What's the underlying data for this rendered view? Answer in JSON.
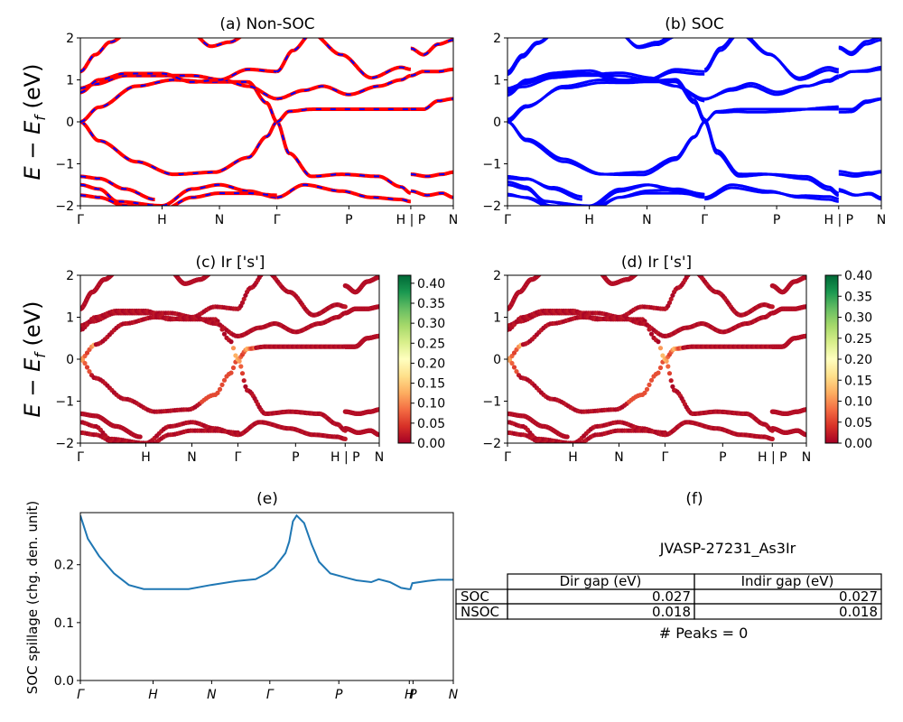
{
  "figure": {
    "ylabel_band": "E − E",
    "ylabel_sub": "f",
    "ylabel_unit": " (eV)"
  },
  "kpath": [
    "Γ",
    "H",
    "N",
    "Γ",
    "P",
    "H | P",
    "N"
  ],
  "panel_a": {
    "title": "(a) Non-SOC"
  },
  "panel_b": {
    "title": "(b) SOC"
  },
  "panel_c": {
    "title": "(c)  Ir ['s']"
  },
  "panel_d": {
    "title": "(d) Ir ['s']"
  },
  "panel_e": {
    "title": "(e)",
    "ylabel": "SOC spillage (chg. den. unit)",
    "kpath_italic": [
      "Γ",
      "H",
      "N",
      "Γ",
      "P",
      "H",
      "P",
      "N"
    ]
  },
  "panel_f": {
    "title": "(f)",
    "jid": "JVASP-27231_As3Ir",
    "table": {
      "columns": [
        "Dir gap (eV)",
        "Indir gap (eV)"
      ],
      "rows": [
        {
          "label": "SOC",
          "dir": "0.027",
          "indir": "0.027"
        },
        {
          "label": "NSOC",
          "dir": "0.018",
          "indir": "0.018"
        }
      ]
    },
    "peaks": "# Peaks = 0"
  },
  "colors": {
    "nonsoc_line": "#ff0000",
    "nonsoc_dash": "#0000ff",
    "soc_line": "#0000ff",
    "spillage_line": "#1f77b4",
    "colormap": "RdYlGn"
  },
  "chart_data": [
    {
      "type": "line",
      "title": "(a) Non-SOC",
      "ylabel": "E − E_f (eV)",
      "ylim": [
        -2,
        2
      ],
      "yticks": [
        "2",
        "1",
        "0",
        "−1",
        "−2"
      ],
      "xticks": [
        "Γ",
        "H",
        "N",
        "Γ",
        "P",
        "H | P",
        "N"
      ],
      "style": "red bands with blue dashes",
      "approx_bands_eV_at_ticks": {
        "Γ": [
          -1.5,
          -1.7,
          0.0,
          0.8,
          0.85
        ],
        "H": [
          -1.95,
          1.1,
          1.15
        ],
        "N": [
          -1.3,
          -1.6,
          0.95,
          1.0,
          1.55
        ],
        "Γ2": [
          -1.8,
          0.0,
          0.3,
          1.2
        ],
        "P": [
          -1.2,
          -1.65,
          0.3,
          0.75,
          1.1
        ]
      }
    },
    {
      "type": "line",
      "title": "(b) SOC",
      "ylim": [
        -2,
        2
      ],
      "yticks": [
        "2",
        "1",
        "0",
        "−1",
        "−2"
      ],
      "xticks": [
        "Γ",
        "H",
        "N",
        "Γ",
        "P",
        "H | P",
        "N"
      ],
      "style": "blue bands"
    },
    {
      "type": "scatter",
      "title": "(c)  Ir ['s']",
      "ylabel": "E − E_f (eV)",
      "ylim": [
        -2,
        2
      ],
      "colorbar": {
        "min": 0.0,
        "max": 0.42,
        "ticks": [
          "0.00",
          "0.05",
          "0.10",
          "0.15",
          "0.20",
          "0.25",
          "0.30",
          "0.35",
          "0.40"
        ]
      }
    },
    {
      "type": "scatter",
      "title": "(d) Ir ['s']",
      "ylim": [
        -2,
        2
      ],
      "colorbar": {
        "min": 0.0,
        "max": 0.4,
        "ticks": [
          "0.00",
          "0.05",
          "0.10",
          "0.15",
          "0.20",
          "0.25",
          "0.30",
          "0.35",
          "0.40"
        ]
      }
    },
    {
      "type": "line",
      "title": "(e)",
      "ylabel": "SOC spillage (chg. den. unit)",
      "ylim": [
        0.0,
        0.29
      ],
      "yticks": [
        "0.0",
        "0.1",
        "0.2"
      ],
      "xticks": [
        "Γ",
        "H",
        "N",
        "Γ",
        "P",
        "H",
        "P",
        "N"
      ],
      "x": [
        0.0,
        0.02,
        0.05,
        0.09,
        0.13,
        0.17,
        0.22,
        0.29,
        0.35,
        0.42,
        0.47,
        0.5,
        0.52,
        0.55,
        0.56,
        0.57,
        0.58,
        0.6,
        0.62,
        0.64,
        0.67,
        0.71,
        0.74,
        0.78,
        0.8,
        0.83,
        0.86,
        0.88,
        0.885,
        0.89,
        0.93,
        0.96,
        1.0
      ],
      "y": [
        0.285,
        0.245,
        0.215,
        0.185,
        0.165,
        0.158,
        0.158,
        0.158,
        0.165,
        0.172,
        0.175,
        0.185,
        0.195,
        0.22,
        0.24,
        0.275,
        0.285,
        0.272,
        0.235,
        0.205,
        0.185,
        0.178,
        0.173,
        0.17,
        0.175,
        0.17,
        0.16,
        0.158,
        0.158,
        0.168,
        0.172,
        0.174,
        0.174
      ]
    }
  ]
}
